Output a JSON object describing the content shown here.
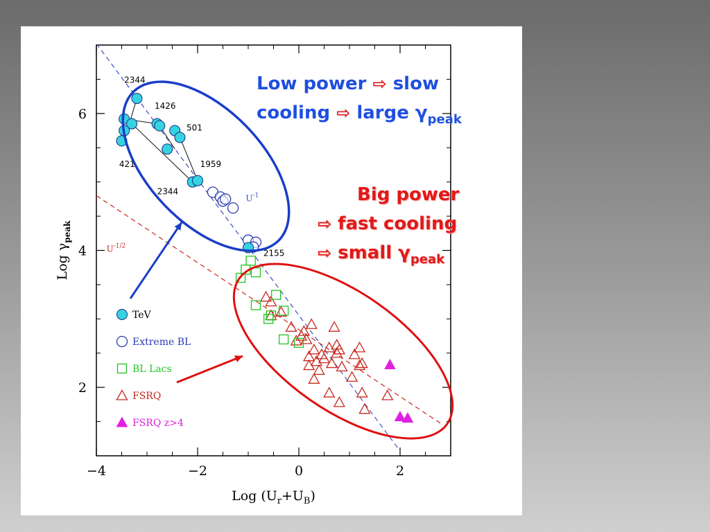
{
  "annotations": {
    "low_power_line1_a": "Low power",
    "implies": "⇨",
    "low_power_line1_b": "slow",
    "low_power_line2_a": "cooling",
    "low_power_line2_b": "large γ",
    "peak_sub": "peak",
    "big_power_line1": "Big power",
    "big_power_line2": "fast cooling",
    "big_power_line3": "small γ"
  },
  "colors": {
    "tev": "#35d3e0",
    "extreme_bl": "#2a3ab0",
    "bl_lacs": "#22c422",
    "fsrq": "#c8281e",
    "fsrq_z4": "#e020e0",
    "ellipse_blue": "#1a3ec8",
    "ellipse_red": "#e01010",
    "dash_blue": "#3a4fc0",
    "dash_red": "#c8281e"
  },
  "chart_data": {
    "type": "scatter",
    "xlabel": "Log (U",
    "xlabel_sub1": "r",
    "xlabel_mid": "+U",
    "xlabel_sub2": "B",
    "xlabel_end": ")",
    "ylabel": "Log γ",
    "ylabel_sub": "peak",
    "xlim": [
      -4,
      3
    ],
    "ylim": [
      1.0,
      7.0
    ],
    "x_ticks": [
      -4,
      -2,
      0,
      2
    ],
    "x_tick_labels": [
      "−4",
      "−2",
      "0",
      "2"
    ],
    "y_ticks": [
      2,
      4,
      6
    ],
    "y_tick_labels": [
      "2",
      "4",
      "6"
    ],
    "grid": false,
    "legend_position": "bottom-left",
    "lines": [
      {
        "label": "U",
        "label_sup": "-1",
        "style": "dashed",
        "color": "#3a4fc0",
        "x": [
          -4.0,
          1.95
        ],
        "y": [
          7.02,
          1.12
        ]
      },
      {
        "label": "U",
        "label_sup": "-1/2",
        "style": "dashed",
        "color": "#c8281e",
        "x": [
          -4.0,
          2.85
        ],
        "y": [
          4.8,
          1.45
        ]
      }
    ],
    "series": [
      {
        "name": "TeV",
        "marker": "filled-circle",
        "color": "#35d3e0",
        "points": [
          [
            -3.2,
            6.22
          ],
          [
            -3.45,
            5.92
          ],
          [
            -3.3,
            5.85
          ],
          [
            -3.45,
            5.75
          ],
          [
            -3.5,
            5.6
          ],
          [
            -2.8,
            5.85
          ],
          [
            -2.75,
            5.82
          ],
          [
            -2.45,
            5.75
          ],
          [
            -2.35,
            5.65
          ],
          [
            -2.6,
            5.48
          ],
          [
            -2.1,
            5.0
          ],
          [
            -2.0,
            5.02
          ],
          [
            -1.0,
            4.04
          ]
        ]
      },
      {
        "name": "Extreme BL",
        "marker": "open-circle",
        "color": "#2a3ab0",
        "points": [
          [
            -1.7,
            4.85
          ],
          [
            -1.55,
            4.78
          ],
          [
            -1.5,
            4.72
          ],
          [
            -1.45,
            4.75
          ],
          [
            -1.3,
            4.62
          ],
          [
            -1.0,
            4.15
          ],
          [
            -0.85,
            4.12
          ],
          [
            -0.9,
            4.05
          ]
        ]
      },
      {
        "name": "BL Lacs",
        "marker": "open-square",
        "color": "#22c422",
        "points": [
          [
            -0.95,
            3.85
          ],
          [
            -1.05,
            3.72
          ],
          [
            -0.85,
            3.68
          ],
          [
            -1.15,
            3.6
          ],
          [
            -0.45,
            3.35
          ],
          [
            -0.85,
            3.2
          ],
          [
            -0.3,
            3.12
          ],
          [
            -0.55,
            3.05
          ],
          [
            -0.6,
            3.0
          ],
          [
            -0.3,
            2.7
          ],
          [
            0.0,
            2.65
          ]
        ]
      },
      {
        "name": "FSRQ",
        "marker": "open-triangle",
        "color": "#c8281e",
        "points": [
          [
            -0.65,
            3.32
          ],
          [
            -0.55,
            3.25
          ],
          [
            -0.55,
            3.05
          ],
          [
            -0.35,
            3.1
          ],
          [
            -0.15,
            2.88
          ],
          [
            0.25,
            2.92
          ],
          [
            0.1,
            2.82
          ],
          [
            0.05,
            2.75
          ],
          [
            0.15,
            2.7
          ],
          [
            -0.05,
            2.68
          ],
          [
            0.7,
            2.88
          ],
          [
            0.75,
            2.62
          ],
          [
            0.8,
            2.55
          ],
          [
            0.6,
            2.58
          ],
          [
            0.75,
            2.5
          ],
          [
            0.3,
            2.55
          ],
          [
            0.45,
            2.48
          ],
          [
            0.5,
            2.42
          ],
          [
            0.2,
            2.45
          ],
          [
            0.35,
            2.38
          ],
          [
            0.65,
            2.35
          ],
          [
            0.85,
            2.3
          ],
          [
            0.2,
            2.32
          ],
          [
            0.4,
            2.25
          ],
          [
            1.2,
            2.58
          ],
          [
            1.1,
            2.48
          ],
          [
            1.25,
            2.35
          ],
          [
            1.2,
            2.32
          ],
          [
            0.3,
            2.12
          ],
          [
            1.05,
            2.15
          ],
          [
            1.25,
            1.92
          ],
          [
            0.8,
            1.78
          ],
          [
            1.3,
            1.68
          ],
          [
            1.75,
            1.88
          ],
          [
            0.6,
            1.92
          ]
        ]
      },
      {
        "name": "FSRQ z>4",
        "marker": "filled-triangle",
        "color": "#e020e0",
        "points": [
          [
            1.8,
            2.33
          ],
          [
            2.0,
            1.57
          ],
          [
            2.15,
            1.55
          ]
        ]
      }
    ],
    "tev_tracks": [
      {
        "label": "2344",
        "points": [
          [
            -3.45,
            5.6
          ],
          [
            -3.2,
            6.22
          ]
        ]
      },
      {
        "label": "1426",
        "points": [
          [
            -3.45,
            5.92
          ],
          [
            -2.8,
            5.85
          ]
        ]
      },
      {
        "label": "501",
        "points": [
          [
            -2.75,
            5.82
          ],
          [
            -2.45,
            5.48
          ]
        ]
      },
      {
        "label": "421",
        "points": [
          [
            -3.3,
            5.85
          ],
          [
            -2.1,
            5.0
          ]
        ]
      },
      {
        "label": "1959",
        "points": [
          [
            -2.35,
            5.65
          ],
          [
            -2.0,
            5.02
          ]
        ]
      }
    ],
    "point_labels": [
      {
        "text": "2344",
        "x": -3.45,
        "y": 6.45
      },
      {
        "text": "1426",
        "x": -2.85,
        "y": 6.07
      },
      {
        "text": "501",
        "x": -2.22,
        "y": 5.75
      },
      {
        "text": "421",
        "x": -3.55,
        "y": 5.22
      },
      {
        "text": "1959",
        "x": -1.95,
        "y": 5.22
      },
      {
        "text": "2344",
        "x": -2.8,
        "y": 4.82
      },
      {
        "text": "2155",
        "x": -0.7,
        "y": 3.92
      }
    ]
  },
  "legend": [
    {
      "label": "TeV",
      "marker": "filled-circle",
      "color": "#35d3e0"
    },
    {
      "label": "Extreme BL",
      "marker": "open-circle",
      "color": "#2a3ab0"
    },
    {
      "label": "BL Lacs",
      "marker": "open-square",
      "color": "#22c422"
    },
    {
      "label": "FSRQ",
      "marker": "open-triangle",
      "color": "#c8281e"
    },
    {
      "label": "FSRQ z>4",
      "marker": "filled-triangle",
      "color": "#e020e0"
    }
  ]
}
